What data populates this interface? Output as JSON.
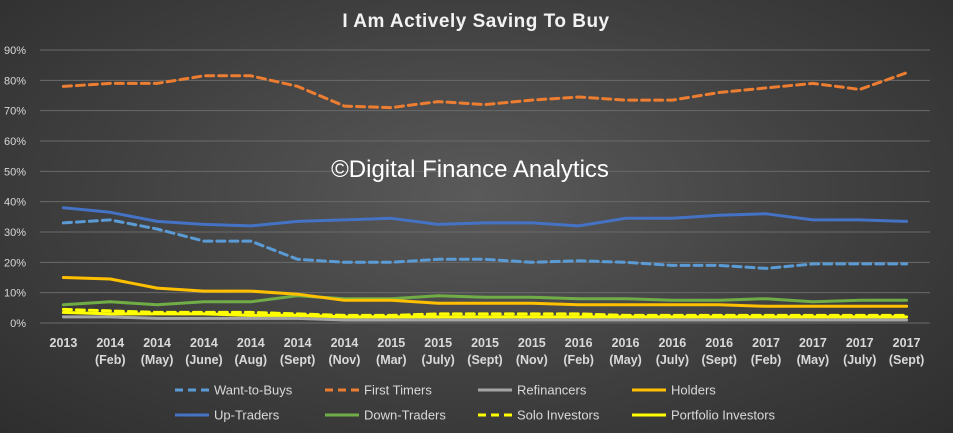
{
  "chart_data": {
    "type": "line",
    "title": "I Am Actively Saving To Buy",
    "watermark": "©Digital Finance Analytics",
    "categories": [
      [
        "2013"
      ],
      [
        "2014",
        "(Feb)"
      ],
      [
        "2014",
        "(May)"
      ],
      [
        "2014",
        "(June)"
      ],
      [
        "2014",
        "(Aug)"
      ],
      [
        "2014",
        "(Sept)"
      ],
      [
        "2014",
        "(Nov)"
      ],
      [
        "2015",
        "(Mar)"
      ],
      [
        "2015",
        "(July)"
      ],
      [
        "2015",
        "(Sept)"
      ],
      [
        "2015",
        "(Nov)"
      ],
      [
        "2016",
        "(Feb)"
      ],
      [
        "2016",
        "(May)"
      ],
      [
        "2016",
        "(July)"
      ],
      [
        "2016",
        "(Sept)"
      ],
      [
        "2017",
        "(Feb)"
      ],
      [
        "2017",
        "(May)"
      ],
      [
        "2017",
        "(July)"
      ],
      [
        "2017",
        "(Sept)"
      ]
    ],
    "ylim": [
      0,
      90
    ],
    "yticks": [
      "0%",
      "10%",
      "20%",
      "30%",
      "40%",
      "50%",
      "60%",
      "70%",
      "80%",
      "90%"
    ],
    "grid": true,
    "legend_position": "bottom",
    "series": [
      {
        "name": "Want-to-Buys",
        "color": "#5b9bd5",
        "dash": true,
        "values": [
          33,
          34,
          31,
          27,
          27,
          21,
          20,
          20,
          21,
          21,
          20,
          20.5,
          20,
          19,
          19,
          18,
          19.5,
          19.5,
          19.5
        ]
      },
      {
        "name": "First Timers",
        "color": "#ed7d31",
        "dash": true,
        "values": [
          78,
          79,
          79,
          81.5,
          81.5,
          78,
          71.5,
          71,
          73,
          72,
          73.5,
          74.5,
          73.5,
          73.5,
          76,
          77.5,
          79,
          77,
          82.5
        ]
      },
      {
        "name": "Refinancers",
        "color": "#a5a5a5",
        "dash": false,
        "values": [
          2,
          2,
          1.5,
          1.5,
          1.5,
          1.5,
          1,
          1,
          1,
          1,
          1,
          1,
          1,
          1,
          1,
          1,
          1,
          1,
          1
        ]
      },
      {
        "name": "Holders",
        "color": "#ffc000",
        "dash": false,
        "values": [
          15,
          14.5,
          11.5,
          10.5,
          10.5,
          9.5,
          7.5,
          7.5,
          6.5,
          6.5,
          6.5,
          6,
          6,
          6,
          6,
          5.5,
          5.5,
          5.5,
          5.5
        ]
      },
      {
        "name": "Up-Traders",
        "color": "#4472c4",
        "dash": false,
        "values": [
          38,
          36.5,
          33.5,
          32.5,
          32,
          33.5,
          34,
          34.5,
          32.5,
          33,
          33,
          32,
          34.5,
          34.5,
          35.5,
          36,
          34,
          34,
          33.5
        ]
      },
      {
        "name": "Down-Traders",
        "color": "#70ad47",
        "dash": false,
        "values": [
          6,
          7,
          6,
          7,
          7,
          9,
          8,
          8,
          9,
          8.5,
          8.5,
          8,
          8,
          7.5,
          7.5,
          8,
          7,
          7.5,
          7.5
        ]
      },
      {
        "name": "Solo Investors",
        "color": "#ffff00",
        "dash": true,
        "values": [
          4.5,
          4,
          3.5,
          3.5,
          3.5,
          3,
          2.5,
          2.5,
          3,
          3,
          3,
          3,
          2.5,
          2.5,
          2.5,
          2.5,
          2.5,
          2.5,
          2.5
        ]
      },
      {
        "name": "Portfolio Investors",
        "color": "#ffff00",
        "dash": false,
        "values": [
          3.5,
          3,
          3,
          3,
          2.5,
          2.5,
          2,
          2,
          2,
          2,
          2,
          2,
          2,
          2,
          2,
          2,
          2,
          2,
          2
        ]
      }
    ]
  }
}
